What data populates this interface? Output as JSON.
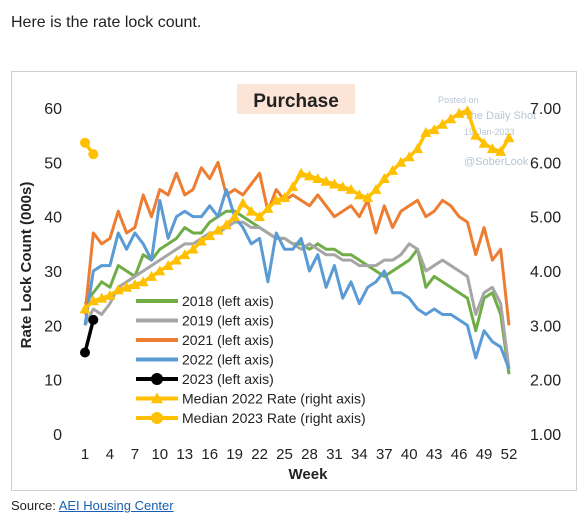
{
  "intro_text": "Here is the rate lock count.",
  "source": {
    "prefix": "Source: ",
    "link_text": "AEI Housing Center"
  },
  "watermark": {
    "line1": "Posted on",
    "line2": "The Daily Shot",
    "line3": "19-Jan-2023",
    "line4": "@SoberLook"
  },
  "chart_data": {
    "type": "line",
    "title": "Purchase",
    "xlabel": "Week",
    "ylabel": "Rate Lock Count (000s)",
    "ylabel_right": "",
    "x_ticks": [
      "1",
      "4",
      "7",
      "10",
      "13",
      "16",
      "19",
      "22",
      "25",
      "28",
      "31",
      "34",
      "37",
      "40",
      "43",
      "46",
      "49",
      "52"
    ],
    "x_range": [
      1,
      52
    ],
    "y_ticks": [
      "0",
      "10",
      "20",
      "30",
      "40",
      "50",
      "60"
    ],
    "y_range": [
      0,
      60
    ],
    "y2_ticks": [
      "1.00",
      "2.00",
      "3.00",
      "4.00",
      "5.00",
      "6.00",
      "7.00"
    ],
    "y2_range": [
      1,
      7
    ],
    "grid": false,
    "legend_placement": "bottom-left",
    "series": [
      {
        "name": "2018 (left axis)",
        "axis": "left",
        "color": "#70ad47",
        "marker": "none",
        "values": [
          24,
          26,
          28,
          27,
          31,
          30,
          29,
          33,
          32,
          34,
          35,
          36,
          38,
          37,
          37,
          39,
          40,
          41,
          41,
          40,
          39,
          38,
          37,
          36,
          36,
          35,
          35,
          34,
          35,
          34,
          34,
          33,
          33,
          32,
          31,
          30,
          29,
          30,
          31,
          32,
          34,
          27,
          29,
          28,
          27,
          26,
          25,
          19,
          25,
          26,
          22,
          11
        ]
      },
      {
        "name": "2019 (left axis)",
        "axis": "left",
        "color": "#a6a6a6",
        "marker": "none",
        "values": [
          20,
          23,
          22,
          24,
          27,
          28,
          29,
          30,
          31,
          32,
          33,
          34,
          35,
          35,
          36,
          37,
          37,
          38,
          39,
          39,
          38,
          38,
          37,
          36,
          36,
          35,
          34,
          35,
          34,
          33,
          33,
          32,
          32,
          31,
          31,
          31,
          32,
          32,
          33,
          35,
          34,
          30,
          31,
          32,
          31,
          30,
          29,
          22,
          26,
          27,
          24,
          12
        ]
      },
      {
        "name": "2021 (left axis)",
        "axis": "left",
        "color": "#ed7d31",
        "marker": "none",
        "values": [
          22,
          37,
          35,
          36,
          41,
          37,
          38,
          44,
          40,
          45,
          44,
          48,
          44,
          45,
          49,
          47,
          50,
          44,
          45,
          44,
          46,
          48,
          41,
          45,
          43,
          44,
          43,
          42,
          44,
          42,
          40,
          41,
          42,
          40,
          43,
          37,
          42,
          38,
          41,
          42,
          43,
          40,
          41,
          43,
          42,
          40,
          39,
          33,
          38,
          32,
          34,
          20
        ]
      },
      {
        "name": "2022 (left axis)",
        "axis": "left",
        "color": "#5b9bd5",
        "marker": "none",
        "values": [
          20,
          30,
          31,
          31,
          37,
          34,
          37,
          35,
          32,
          43,
          36,
          40,
          41,
          40,
          40,
          42,
          40,
          45,
          40,
          38,
          35,
          36,
          28,
          37,
          34,
          34,
          36,
          30,
          33,
          27,
          31,
          25,
          28,
          24,
          27,
          28,
          30,
          26,
          26,
          25,
          23,
          22,
          23,
          22,
          22,
          21,
          20,
          14,
          19,
          17,
          16,
          12
        ]
      },
      {
        "name": "2023 (left axis)",
        "axis": "left",
        "color": "#000000",
        "marker": "circle",
        "values": [
          15,
          21
        ]
      },
      {
        "name": "Median 2022 Rate (right axis)",
        "axis": "right",
        "color": "#ffc000",
        "marker": "triangle",
        "values": [
          3.3,
          3.45,
          3.5,
          3.55,
          3.65,
          3.7,
          3.75,
          3.8,
          3.9,
          4.0,
          4.1,
          4.2,
          4.3,
          4.4,
          4.55,
          4.65,
          4.75,
          4.85,
          5.0,
          5.25,
          5.1,
          5.0,
          5.15,
          5.3,
          5.35,
          5.55,
          5.8,
          5.75,
          5.7,
          5.65,
          5.6,
          5.55,
          5.5,
          5.4,
          5.35,
          5.5,
          5.7,
          5.85,
          6.0,
          6.1,
          6.25,
          6.55,
          6.6,
          6.7,
          6.8,
          6.9,
          6.95,
          6.5,
          6.35,
          6.25,
          6.2,
          6.45
        ]
      },
      {
        "name": "Median 2023 Rate (right axis)",
        "axis": "right",
        "color": "#ffc000",
        "marker": "circle",
        "values": [
          6.36,
          6.15
        ]
      }
    ]
  }
}
